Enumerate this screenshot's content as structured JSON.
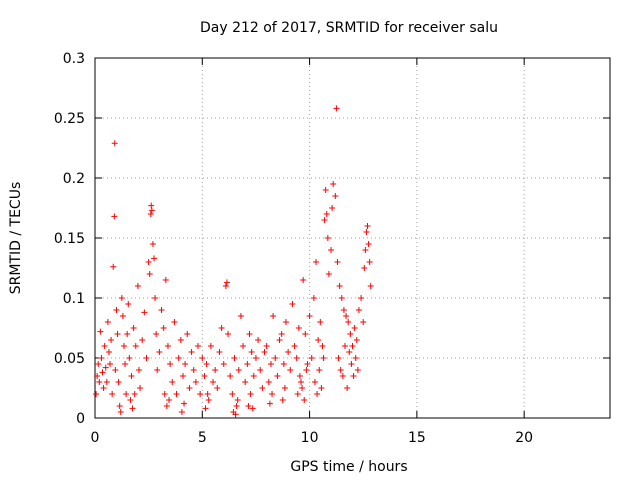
{
  "chart_data": {
    "type": "scatter",
    "title": "Day 212 of 2017, SRMTID for receiver salu",
    "xlabel": "GPS time / hours",
    "ylabel": "SRMTID / TECUs",
    "xlim": [
      0,
      24
    ],
    "ylim": [
      0,
      0.3
    ],
    "xticks": [
      0,
      5,
      10,
      15,
      20
    ],
    "xtick_labels": [
      "0",
      "5",
      "10",
      "15",
      "20"
    ],
    "yticks": [
      0,
      0.05,
      0.1,
      0.15,
      0.2,
      0.25,
      0.3
    ],
    "ytick_labels": [
      "0",
      "0.05",
      "0.1",
      "0.15",
      "0.2",
      "0.25",
      "0.3"
    ],
    "grid": true,
    "marker": "+",
    "color": "#ff0000",
    "series": [
      {
        "name": "SRMTID",
        "points": [
          [
            0.05,
            0.02
          ],
          [
            0.1,
            0.035
          ],
          [
            0.15,
            0.045
          ],
          [
            0.2,
            0.03
          ],
          [
            0.25,
            0.072
          ],
          [
            0.3,
            0.05
          ],
          [
            0.35,
            0.038
          ],
          [
            0.4,
            0.025
          ],
          [
            0.45,
            0.06
          ],
          [
            0.5,
            0.042
          ],
          [
            0.55,
            0.03
          ],
          [
            0.6,
            0.08
          ],
          [
            0.65,
            0.055
          ],
          [
            0.7,
            0.045
          ],
          [
            0.75,
            0.065
          ],
          [
            0.8,
            0.02
          ],
          [
            0.85,
            0.126
          ],
          [
            0.9,
            0.168
          ],
          [
            0.92,
            0.229
          ],
          [
            0.95,
            0.04
          ],
          [
            1.0,
            0.09
          ],
          [
            1.05,
            0.07
          ],
          [
            1.1,
            0.03
          ],
          [
            1.15,
            0.01
          ],
          [
            1.2,
            0.005
          ],
          [
            1.25,
            0.1
          ],
          [
            1.3,
            0.085
          ],
          [
            1.35,
            0.06
          ],
          [
            1.4,
            0.045
          ],
          [
            1.45,
            0.02
          ],
          [
            1.5,
            0.07
          ],
          [
            1.55,
            0.095
          ],
          [
            1.6,
            0.05
          ],
          [
            1.7,
            0.035
          ],
          [
            1.8,
            0.075
          ],
          [
            1.9,
            0.06
          ],
          [
            2.0,
            0.11
          ],
          [
            2.05,
            0.04
          ],
          [
            2.1,
            0.025
          ],
          [
            2.2,
            0.065
          ],
          [
            2.3,
            0.088
          ],
          [
            2.4,
            0.05
          ],
          [
            2.5,
            0.13
          ],
          [
            2.55,
            0.12
          ],
          [
            2.6,
            0.17
          ],
          [
            2.62,
            0.177
          ],
          [
            2.65,
            0.173
          ],
          [
            2.7,
            0.145
          ],
          [
            2.75,
            0.133
          ],
          [
            2.8,
            0.1
          ],
          [
            2.85,
            0.07
          ],
          [
            2.9,
            0.04
          ],
          [
            3.0,
            0.055
          ],
          [
            3.1,
            0.09
          ],
          [
            3.2,
            0.075
          ],
          [
            3.3,
            0.115
          ],
          [
            3.4,
            0.06
          ],
          [
            3.5,
            0.045
          ],
          [
            3.6,
            0.03
          ],
          [
            3.7,
            0.08
          ],
          [
            3.8,
            0.02
          ],
          [
            3.9,
            0.05
          ],
          [
            4.0,
            0.065
          ],
          [
            4.1,
            0.035
          ],
          [
            4.2,
            0.045
          ],
          [
            4.3,
            0.07
          ],
          [
            4.4,
            0.025
          ],
          [
            4.5,
            0.055
          ],
          [
            4.6,
            0.04
          ],
          [
            4.7,
            0.03
          ],
          [
            4.8,
            0.06
          ],
          [
            4.9,
            0.02
          ],
          [
            5.0,
            0.05
          ],
          [
            5.1,
            0.035
          ],
          [
            5.2,
            0.045
          ],
          [
            5.3,
            0.015
          ],
          [
            5.4,
            0.06
          ],
          [
            5.5,
            0.03
          ],
          [
            5.6,
            0.04
          ],
          [
            5.7,
            0.025
          ],
          [
            5.8,
            0.055
          ],
          [
            5.9,
            0.075
          ],
          [
            6.0,
            0.045
          ],
          [
            6.1,
            0.11
          ],
          [
            6.15,
            0.113
          ],
          [
            6.2,
            0.07
          ],
          [
            6.3,
            0.035
          ],
          [
            6.4,
            0.02
          ],
          [
            6.5,
            0.05
          ],
          [
            6.6,
            0.01
          ],
          [
            6.7,
            0.04
          ],
          [
            6.8,
            0.085
          ],
          [
            6.9,
            0.06
          ],
          [
            7.0,
            0.03
          ],
          [
            7.1,
            0.045
          ],
          [
            7.2,
            0.07
          ],
          [
            7.3,
            0.055
          ],
          [
            7.4,
            0.035
          ],
          [
            7.5,
            0.05
          ],
          [
            7.6,
            0.065
          ],
          [
            7.7,
            0.04
          ],
          [
            7.8,
            0.025
          ],
          [
            7.9,
            0.055
          ],
          [
            8.0,
            0.06
          ],
          [
            8.1,
            0.03
          ],
          [
            8.2,
            0.045
          ],
          [
            8.3,
            0.085
          ],
          [
            8.4,
            0.05
          ],
          [
            8.5,
            0.035
          ],
          [
            8.6,
            0.065
          ],
          [
            8.7,
            0.07
          ],
          [
            8.8,
            0.045
          ],
          [
            8.9,
            0.08
          ],
          [
            9.0,
            0.055
          ],
          [
            9.1,
            0.04
          ],
          [
            9.2,
            0.095
          ],
          [
            9.3,
            0.06
          ],
          [
            9.4,
            0.05
          ],
          [
            9.5,
            0.075
          ],
          [
            9.6,
            0.03
          ],
          [
            9.7,
            0.115
          ],
          [
            9.8,
            0.07
          ],
          [
            9.9,
            0.045
          ],
          [
            10.0,
            0.085
          ],
          [
            10.1,
            0.05
          ],
          [
            10.2,
            0.1
          ],
          [
            10.3,
            0.13
          ],
          [
            10.4,
            0.065
          ],
          [
            10.5,
            0.08
          ],
          [
            10.6,
            0.06
          ],
          [
            10.7,
            0.165
          ],
          [
            10.75,
            0.19
          ],
          [
            10.8,
            0.17
          ],
          [
            10.85,
            0.15
          ],
          [
            10.9,
            0.12
          ],
          [
            11.0,
            0.14
          ],
          [
            11.05,
            0.175
          ],
          [
            11.1,
            0.195
          ],
          [
            11.2,
            0.185
          ],
          [
            11.25,
            0.258
          ],
          [
            11.3,
            0.13
          ],
          [
            11.4,
            0.11
          ],
          [
            11.5,
            0.1
          ],
          [
            11.6,
            0.09
          ],
          [
            11.7,
            0.085
          ],
          [
            11.8,
            0.08
          ],
          [
            11.9,
            0.07
          ],
          [
            12.0,
            0.06
          ],
          [
            12.1,
            0.075
          ],
          [
            12.2,
            0.065
          ],
          [
            12.3,
            0.09
          ],
          [
            12.4,
            0.1
          ],
          [
            12.5,
            0.08
          ],
          [
            12.55,
            0.125
          ],
          [
            12.6,
            0.14
          ],
          [
            12.65,
            0.155
          ],
          [
            12.7,
            0.16
          ],
          [
            12.75,
            0.145
          ],
          [
            12.8,
            0.13
          ],
          [
            12.85,
            0.11
          ],
          [
            11.35,
            0.05
          ],
          [
            11.45,
            0.04
          ],
          [
            11.55,
            0.035
          ],
          [
            11.65,
            0.06
          ],
          [
            11.75,
            0.025
          ],
          [
            11.85,
            0.055
          ],
          [
            11.95,
            0.045
          ],
          [
            12.05,
            0.035
          ],
          [
            12.15,
            0.05
          ],
          [
            12.25,
            0.04
          ],
          [
            10.25,
            0.03
          ],
          [
            10.35,
            0.02
          ],
          [
            10.45,
            0.04
          ],
          [
            10.55,
            0.025
          ],
          [
            10.65,
            0.05
          ],
          [
            9.45,
            0.02
          ],
          [
            9.55,
            0.035
          ],
          [
            9.65,
            0.025
          ],
          [
            9.75,
            0.015
          ],
          [
            9.85,
            0.04
          ],
          [
            3.25,
            0.02
          ],
          [
            3.35,
            0.01
          ],
          [
            3.45,
            0.015
          ],
          [
            4.05,
            0.005
          ],
          [
            4.15,
            0.012
          ],
          [
            5.15,
            0.008
          ],
          [
            5.25,
            0.02
          ],
          [
            6.45,
            0.005
          ],
          [
            6.55,
            0.003
          ],
          [
            6.65,
            0.015
          ],
          [
            7.15,
            0.01
          ],
          [
            7.25,
            0.02
          ],
          [
            7.35,
            0.008
          ],
          [
            8.15,
            0.012
          ],
          [
            8.25,
            0.02
          ],
          [
            8.75,
            0.015
          ],
          [
            8.85,
            0.025
          ],
          [
            1.65,
            0.015
          ],
          [
            1.75,
            0.008
          ],
          [
            1.85,
            0.02
          ]
        ]
      }
    ]
  }
}
